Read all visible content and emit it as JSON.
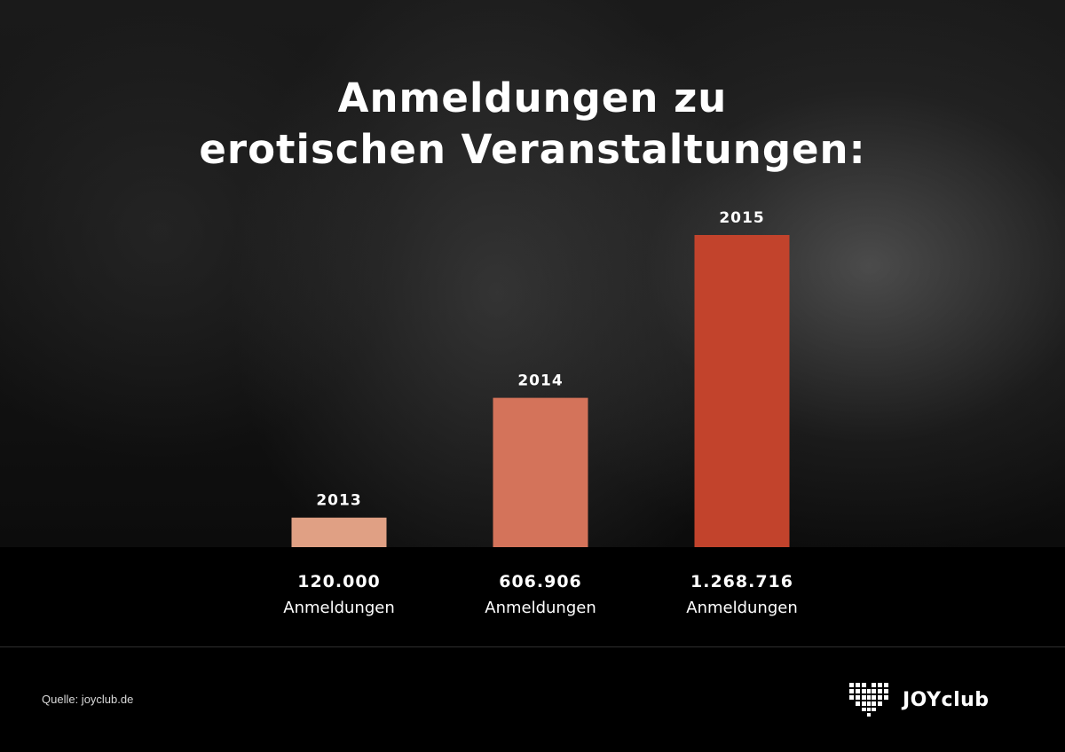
{
  "title": {
    "line1": "Anmeldungen zu",
    "line2": "erotischen Veranstaltungen:"
  },
  "chart_data": {
    "type": "bar",
    "categories": [
      "2013",
      "2014",
      "2015"
    ],
    "values": [
      120000,
      606906,
      1268716
    ],
    "value_labels": [
      "120.000",
      "606.906",
      "1.268.716"
    ],
    "unit_label": "Anmeldungen",
    "bar_colors": [
      "#e0a084",
      "#d4735a",
      "#c2432c"
    ],
    "title": "Anmeldungen zu erotischen Veranstaltungen:",
    "xlabel": "",
    "ylabel": "",
    "grid": false
  },
  "footer": {
    "source": "Quelle: joyclub.de",
    "logo_text": "JOYclub"
  }
}
